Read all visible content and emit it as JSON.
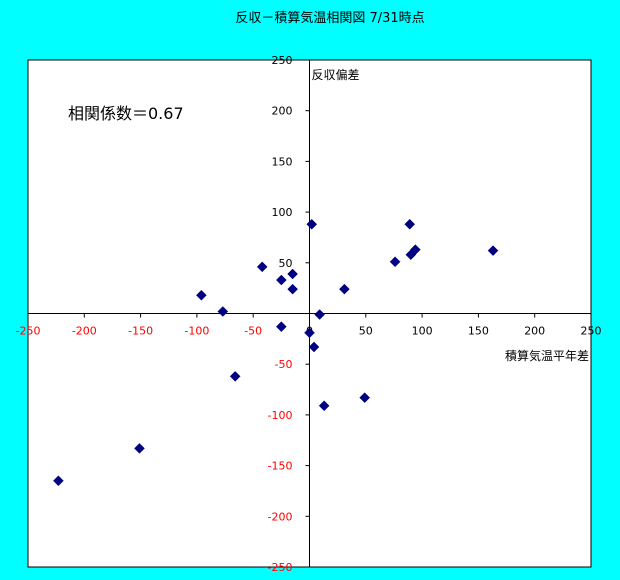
{
  "chart_data": {
    "type": "scatter",
    "title": "反収－積算気温相関図 7/31時点",
    "xlabel": "積算気温平年差",
    "ylabel": "反収偏差",
    "annotation": "相関係数＝0.67",
    "xlim": [
      -250,
      250
    ],
    "ylim": [
      -250,
      250
    ],
    "xticks": [
      -250,
      -200,
      -150,
      -100,
      -50,
      0,
      50,
      100,
      150,
      200,
      250
    ],
    "yticks": [
      -250,
      -200,
      -150,
      -100,
      -50,
      0,
      50,
      100,
      150,
      200,
      250
    ],
    "grid": false,
    "legend": "none",
    "colors": {
      "background": "#00FFFF",
      "plot_area": "#FFFFFF",
      "marker": "#000080",
      "negative_tick": "#FF0000",
      "positive_tick": "#000000"
    },
    "series": [
      {
        "marker": "diamond",
        "points": [
          {
            "x": -223,
            "y": -165
          },
          {
            "x": -151,
            "y": -133
          },
          {
            "x": -96,
            "y": 18
          },
          {
            "x": -77,
            "y": 2
          },
          {
            "x": -66,
            "y": -62
          },
          {
            "x": -42,
            "y": 46
          },
          {
            "x": -25,
            "y": 33
          },
          {
            "x": -25,
            "y": -13
          },
          {
            "x": -15,
            "y": 39
          },
          {
            "x": -15,
            "y": 24
          },
          {
            "x": 2,
            "y": 88
          },
          {
            "x": 0,
            "y": -19
          },
          {
            "x": 4,
            "y": -33
          },
          {
            "x": 9,
            "y": -1
          },
          {
            "x": 13,
            "y": -91
          },
          {
            "x": 31,
            "y": 24
          },
          {
            "x": 49,
            "y": -83
          },
          {
            "x": 76,
            "y": 51
          },
          {
            "x": 89,
            "y": 88
          },
          {
            "x": 90,
            "y": 58
          },
          {
            "x": 94,
            "y": 63
          },
          {
            "x": 163,
            "y": 62
          }
        ]
      }
    ]
  }
}
